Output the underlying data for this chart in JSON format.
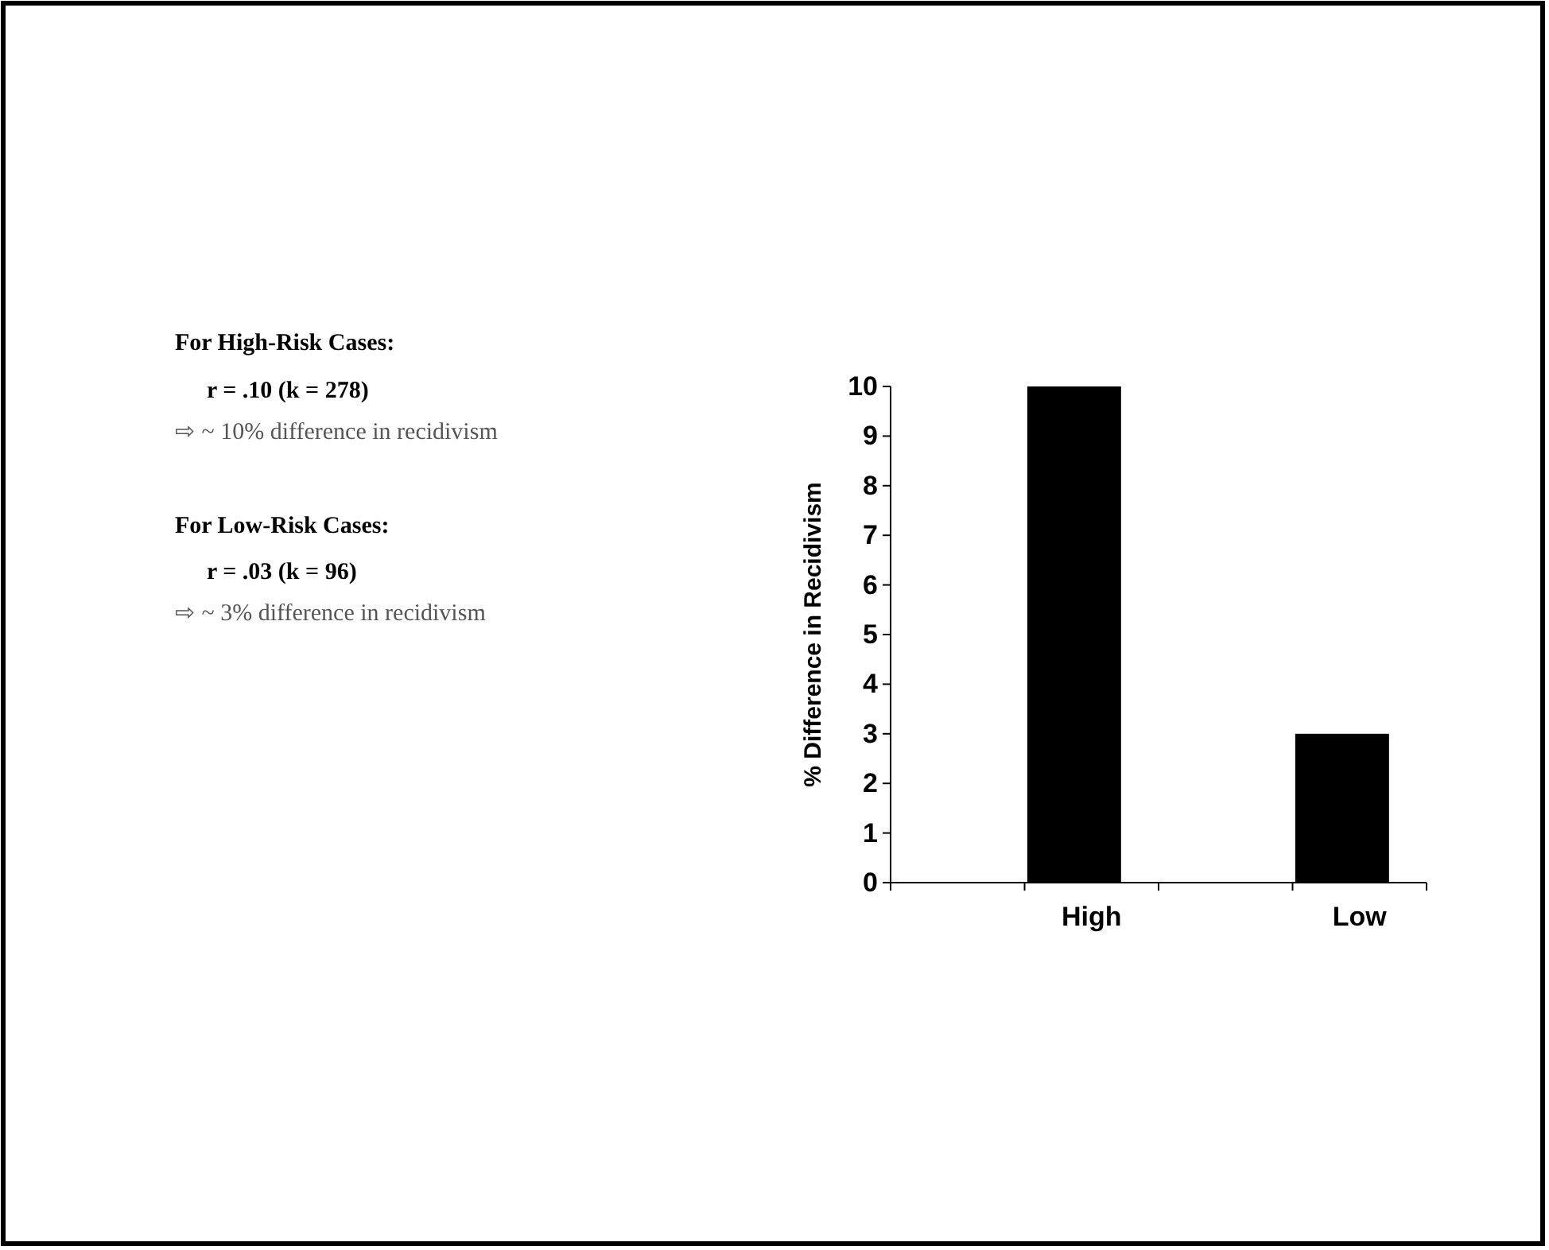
{
  "chart_data": {
    "type": "bar",
    "ylabel": "% Difference in Recidivism",
    "categories": [
      null,
      "High",
      null,
      "Low"
    ],
    "values": [
      null,
      10,
      null,
      3
    ],
    "color": "#000000",
    "ylim": [
      0,
      10
    ],
    "yticks": [
      0,
      1,
      2,
      3,
      4,
      5,
      6,
      7,
      8,
      9,
      10
    ],
    "grid": false,
    "annotations": [
      "For High-Risk Cases:",
      "r = .10 (k = 278)",
      "⇨ ~ 10% difference in recidivism",
      "For Low-Risk Cases:",
      "r = .03 (k = 96)",
      "⇨ ~ 3% difference in recidivism"
    ]
  }
}
